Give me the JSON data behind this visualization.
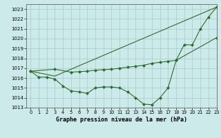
{
  "title": "Graphe pression niveau de la mer (hPa)",
  "bg_color": "#cceaea",
  "grid_color": "#aacfcf",
  "line_color": "#2d6a2d",
  "xlim": [
    -0.5,
    23
  ],
  "ylim": [
    1013,
    1023.5
  ],
  "yticks": [
    1013,
    1014,
    1015,
    1016,
    1017,
    1018,
    1019,
    1020,
    1021,
    1022,
    1023
  ],
  "xticks": [
    0,
    1,
    2,
    3,
    4,
    5,
    6,
    7,
    8,
    9,
    10,
    11,
    12,
    13,
    14,
    15,
    16,
    17,
    18,
    19,
    20,
    21,
    22,
    23
  ],
  "series1_x": [
    0,
    1,
    2,
    3,
    4,
    5,
    6,
    7,
    8,
    9,
    10,
    11,
    12,
    13,
    14,
    15,
    16,
    17,
    18,
    19,
    20,
    21,
    22,
    23
  ],
  "series1_y": [
    1016.7,
    1016.1,
    1016.1,
    1015.9,
    1015.2,
    1014.7,
    1014.6,
    1014.45,
    1015.0,
    1015.1,
    1015.1,
    1015.0,
    1014.6,
    1014.0,
    1013.35,
    1013.3,
    1014.0,
    1015.0,
    1017.8,
    1019.4,
    1019.35,
    1021.0,
    1022.2,
    1023.2
  ],
  "series2_x": [
    0,
    3,
    23
  ],
  "series2_y": [
    1016.7,
    1016.2,
    1023.2
  ],
  "series3_x": [
    0,
    3,
    5,
    6,
    7,
    8,
    9,
    10,
    11,
    12,
    13,
    14,
    15,
    16,
    17,
    18,
    23
  ],
  "series3_y": [
    1016.7,
    1016.9,
    1016.6,
    1016.65,
    1016.7,
    1016.8,
    1016.85,
    1016.9,
    1017.0,
    1017.1,
    1017.2,
    1017.3,
    1017.5,
    1017.6,
    1017.7,
    1017.8,
    1020.1
  ]
}
